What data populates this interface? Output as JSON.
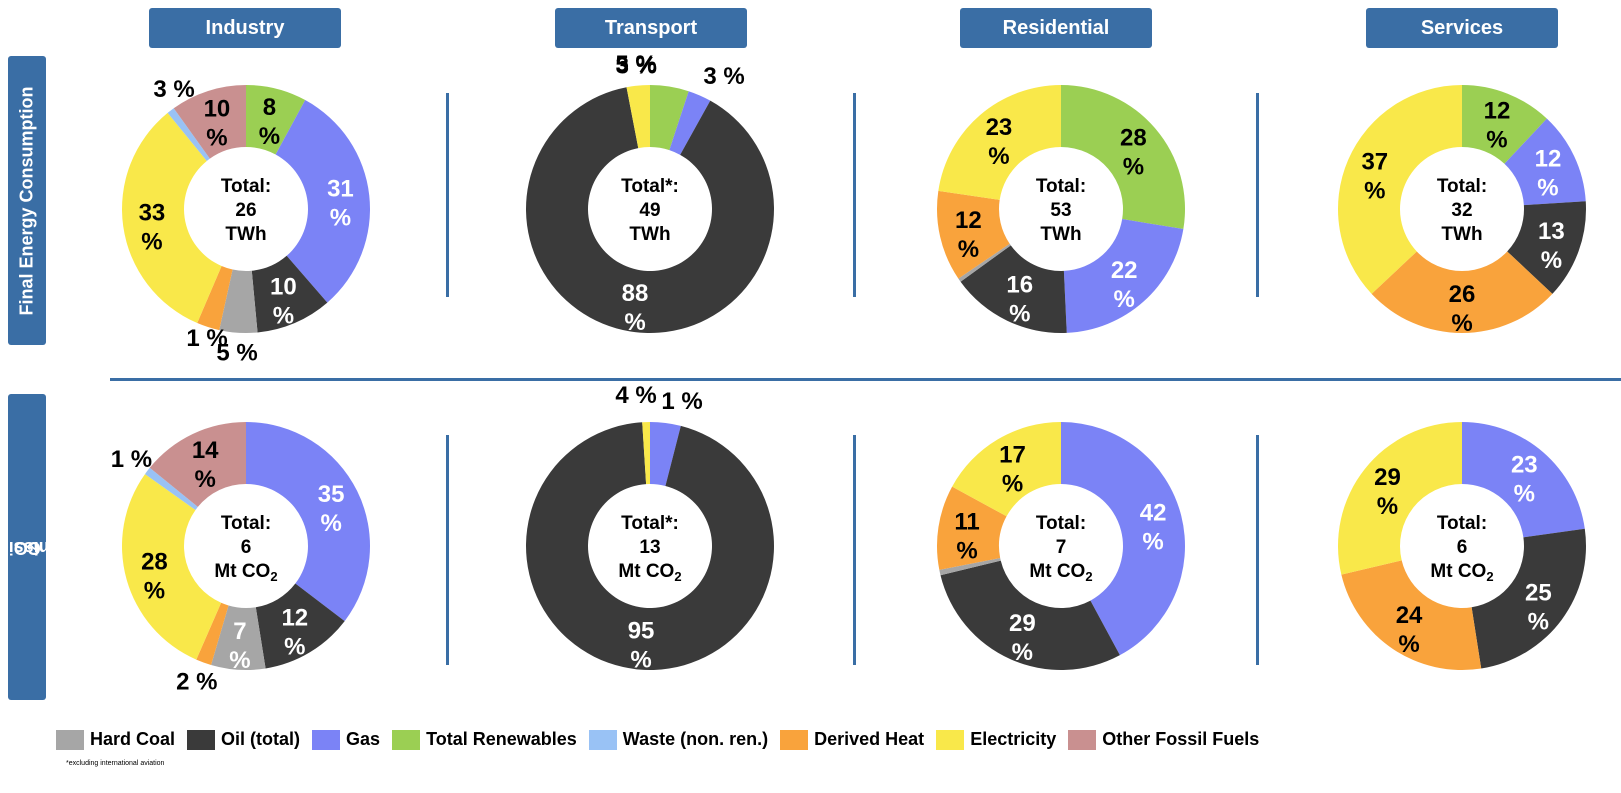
{
  "columns": [
    "Industry",
    "Transport",
    "Residential",
    "Services"
  ],
  "rows": [
    "Final Energy Consumption",
    "CO2 - Emissions"
  ],
  "row_label_parts": {
    "fec": "Final Energy Consumption",
    "co2_prefix": "CO",
    "co2_sub": "2",
    "co2_suffix": " - Emissions"
  },
  "legend": [
    {
      "label": "Hard Coal",
      "color": "#A6A6A6"
    },
    {
      "label": "Oil (total)",
      "color": "#3A3A3A"
    },
    {
      "label": "Gas",
      "color": "#7B83F6"
    },
    {
      "label": "Total Renewables",
      "color": "#9BCF53"
    },
    {
      "label": "Waste (non. ren.)",
      "color": "#99C2F5"
    },
    {
      "label": "Derived Heat",
      "color": "#F9A33C"
    },
    {
      "label": "Electricity",
      "color": "#F9E84A"
    },
    {
      "label": "Other Fossil Fuels",
      "color": "#C99090"
    }
  ],
  "footnote": "*excluding international aviation",
  "chart_data": [
    {
      "type": "donut",
      "row": "Final Energy Consumption",
      "column": "Industry",
      "center": [
        "Total:",
        "26",
        "TWh"
      ],
      "slices": [
        {
          "name": "Total Renewables",
          "value": 8,
          "label": "8 %"
        },
        {
          "name": "Gas",
          "value": 31,
          "label": "31 %"
        },
        {
          "name": "Oil (total)",
          "value": 10,
          "label": "10 %"
        },
        {
          "name": "Hard Coal",
          "value": 5,
          "label": "5 %"
        },
        {
          "name": "Derived Heat",
          "value": 3,
          "label": "3 %"
        },
        {
          "name": "Electricity",
          "value": 33,
          "label": "33 %"
        },
        {
          "name": "Waste (non. ren.)",
          "value": 1,
          "label": "1 %"
        },
        {
          "name": "Other Fossil Fuels",
          "value": 10,
          "label": "10 %"
        }
      ]
    },
    {
      "type": "donut",
      "row": "Final Energy Consumption",
      "column": "Transport",
      "center": [
        "Total*:",
        "49",
        "TWh"
      ],
      "slices": [
        {
          "name": "Total Renewables",
          "value": 5,
          "label": "5 %"
        },
        {
          "name": "Gas",
          "value": 3,
          "label": "3 %"
        },
        {
          "name": "Oil (total)",
          "value": 88,
          "label": "88 %"
        },
        {
          "name": "Electricity",
          "value": 3,
          "label": "3 %"
        }
      ]
    },
    {
      "type": "donut",
      "row": "Final Energy Consumption",
      "column": "Residential",
      "center": [
        "Total:",
        "53",
        "TWh"
      ],
      "slices": [
        {
          "name": "Total Renewables",
          "value": 28,
          "label": "28 %"
        },
        {
          "name": "Gas",
          "value": 22,
          "label": "22 %"
        },
        {
          "name": "Oil (total)",
          "value": 16,
          "label": "16 %"
        },
        {
          "name": "Hard Coal",
          "value": 0.5,
          "label": ""
        },
        {
          "name": "Derived Heat",
          "value": 12,
          "label": "12 %"
        },
        {
          "name": "Electricity",
          "value": 23,
          "label": "23 %"
        }
      ]
    },
    {
      "type": "donut",
      "row": "Final Energy Consumption",
      "column": "Services",
      "center": [
        "Total:",
        "32",
        "TWh"
      ],
      "slices": [
        {
          "name": "Total Renewables",
          "value": 12,
          "label": "12 %"
        },
        {
          "name": "Gas",
          "value": 12,
          "label": "12 %"
        },
        {
          "name": "Oil (total)",
          "value": 13,
          "label": "13 %"
        },
        {
          "name": "Derived Heat",
          "value": 26,
          "label": "26 %"
        },
        {
          "name": "Electricity",
          "value": 37,
          "label": "37 %"
        }
      ]
    },
    {
      "type": "donut",
      "row": "CO2 - Emissions",
      "column": "Industry",
      "center": [
        "Total:",
        "6",
        "Mt CO2"
      ],
      "slices": [
        {
          "name": "Gas",
          "value": 35,
          "label": "35 %"
        },
        {
          "name": "Oil (total)",
          "value": 12,
          "label": "12 %"
        },
        {
          "name": "Hard Coal",
          "value": 7,
          "label": "7 %"
        },
        {
          "name": "Derived Heat",
          "value": 2,
          "label": "2 %"
        },
        {
          "name": "Electricity",
          "value": 28,
          "label": "28 %"
        },
        {
          "name": "Waste (non. ren.)",
          "value": 1,
          "label": "1 %"
        },
        {
          "name": "Other Fossil Fuels",
          "value": 14,
          "label": "14 %"
        }
      ]
    },
    {
      "type": "donut",
      "row": "CO2 - Emissions",
      "column": "Transport",
      "center": [
        "Total*:",
        "13",
        "Mt CO2"
      ],
      "slices": [
        {
          "name": "Gas",
          "value": 4,
          "label": "4 %"
        },
        {
          "name": "Oil (total)",
          "value": 95,
          "label": "95 %"
        },
        {
          "name": "Electricity",
          "value": 1,
          "label": "1 %"
        }
      ]
    },
    {
      "type": "donut",
      "row": "CO2 - Emissions",
      "column": "Residential",
      "center": [
        "Total:",
        "7",
        "Mt CO2"
      ],
      "slices": [
        {
          "name": "Gas",
          "value": 42,
          "label": "42 %"
        },
        {
          "name": "Oil (total)",
          "value": 29,
          "label": "29 %"
        },
        {
          "name": "Hard Coal",
          "value": 0.7,
          "label": ""
        },
        {
          "name": "Derived Heat",
          "value": 11,
          "label": "11 %"
        },
        {
          "name": "Electricity",
          "value": 17,
          "label": "17 %"
        }
      ]
    },
    {
      "type": "donut",
      "row": "CO2 - Emissions",
      "column": "Services",
      "center": [
        "Total:",
        "6",
        "Mt CO2"
      ],
      "slices": [
        {
          "name": "Gas",
          "value": 23,
          "label": "23 %"
        },
        {
          "name": "Oil (total)",
          "value": 25,
          "label": "25 %"
        },
        {
          "name": "Derived Heat",
          "value": 24,
          "label": "24 %"
        },
        {
          "name": "Electricity",
          "value": 29,
          "label": "29 %"
        }
      ]
    }
  ]
}
